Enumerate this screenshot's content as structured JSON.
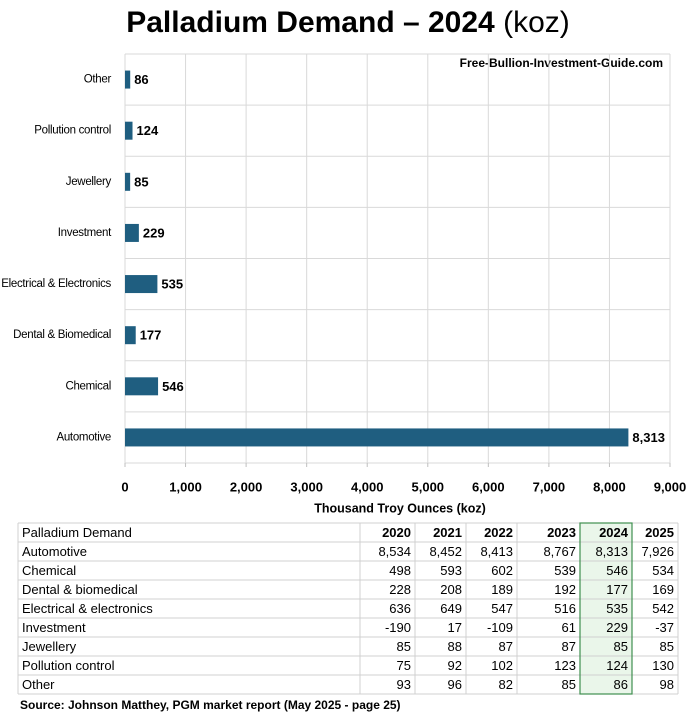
{
  "chart_data": {
    "type": "bar",
    "orientation": "horizontal",
    "title": "Palladium Demand – 2024",
    "title_unit": "(koz)",
    "watermark": "Free-Bullion-Investment-Guide.com",
    "xlabel": "Thousand Troy Ounces  (koz)",
    "categories": [
      "Other",
      "Pollution control",
      "Jewellery",
      "Investment",
      "Electrical & Electronics",
      "Dental & Biomedical",
      "Chemical",
      "Automotive"
    ],
    "values": [
      86,
      124,
      85,
      229,
      535,
      177,
      546,
      8313
    ],
    "value_labels": [
      "86",
      "124",
      "85",
      "229",
      "535",
      "177",
      "546",
      "8,313"
    ],
    "color": "#1f5e80",
    "xlim": [
      0,
      9000
    ],
    "xticks": [
      0,
      {
        "value": 1000,
        "label": "1,000"
      },
      {
        "value": 2000,
        "label": "2,000"
      },
      {
        "value": 3000,
        "label": "3,000"
      },
      {
        "value": 4000,
        "label": "4,000"
      },
      {
        "value": 5000,
        "label": "5,000"
      },
      {
        "value": 6000,
        "label": "6,000"
      },
      {
        "value": 7000,
        "label": "7,000"
      },
      {
        "value": 8000,
        "label": "8,000"
      },
      {
        "value": 9000,
        "label": "9,000"
      }
    ],
    "grid": true
  },
  "table": {
    "header": [
      "Palladium Demand",
      "2020",
      "2021",
      "2022",
      "2023",
      "2024",
      "2025"
    ],
    "rows": [
      [
        "Automotive",
        "8,534",
        "8,452",
        "8,413",
        "8,767",
        "8,313",
        "7,926"
      ],
      [
        "Chemical",
        "498",
        "593",
        "602",
        "539",
        "546",
        "534"
      ],
      [
        "Dental & biomedical",
        "228",
        "208",
        "189",
        "192",
        "177",
        "169"
      ],
      [
        "Electrical & electronics",
        "636",
        "649",
        "547",
        "516",
        "535",
        "542"
      ],
      [
        "Investment",
        "-190",
        "17",
        "-109",
        "61",
        "229",
        "-37"
      ],
      [
        "Jewellery",
        "85",
        "88",
        "87",
        "87",
        "85",
        "85"
      ],
      [
        "Pollution control",
        "75",
        "92",
        "102",
        "123",
        "124",
        "130"
      ],
      [
        "Other",
        "93",
        "96",
        "82",
        "85",
        "86",
        "98"
      ]
    ]
  },
  "source": "Source: Johnson Matthey, PGM market report (May 2025 - page 25)"
}
